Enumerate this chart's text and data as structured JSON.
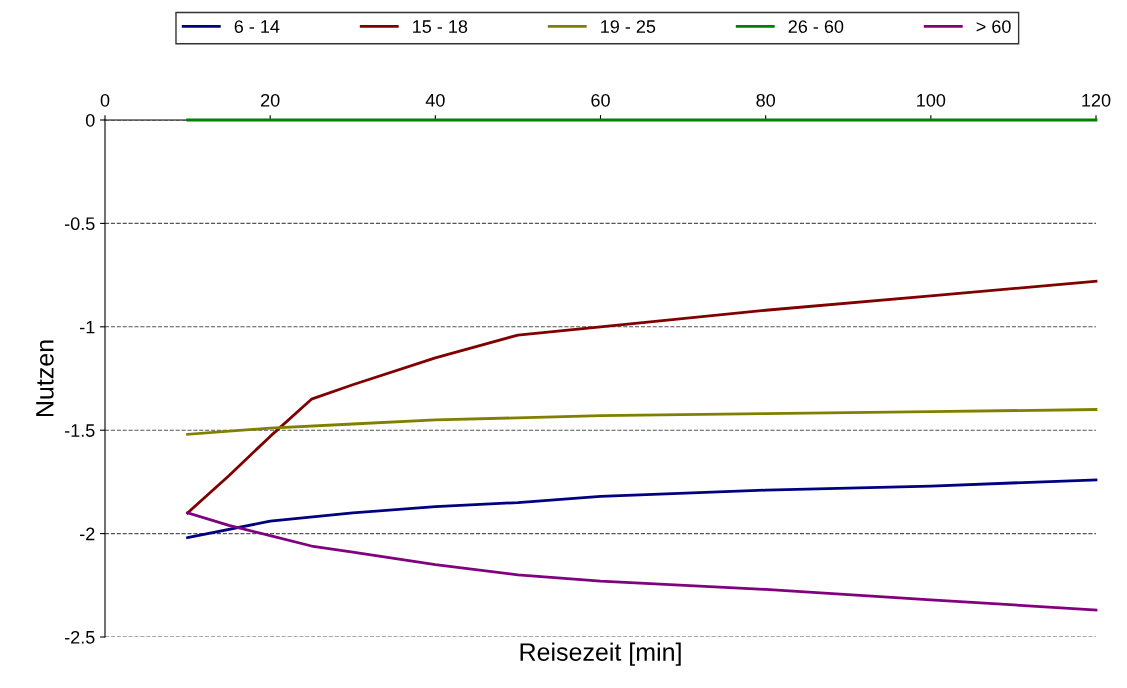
{
  "chart_data": {
    "type": "line",
    "xlabel": "Reisezeit [min]",
    "ylabel": "Nutzen",
    "xlim": [
      0,
      120
    ],
    "xticks": [
      0,
      20,
      40,
      60,
      80,
      100,
      120
    ],
    "ylim": [
      -2.5,
      0
    ],
    "yticks": [
      -2.5,
      -2,
      -1.5,
      -1,
      -0.5,
      0
    ],
    "grid": "y",
    "legend": "top",
    "marker": "none",
    "line_style": "solid",
    "series": [
      {
        "name": "6 - 14",
        "color": "#000080",
        "x": [
          10,
          20,
          30,
          40,
          50,
          60,
          80,
          100,
          120
        ],
        "values": [
          -2.02,
          -1.94,
          -1.9,
          -1.87,
          -1.85,
          -1.82,
          -1.79,
          -1.77,
          -1.74
        ]
      },
      {
        "name": "15 - 18",
        "color": "#800000",
        "x": [
          10,
          15,
          20,
          25,
          30,
          40,
          50,
          60,
          80,
          100,
          120
        ],
        "values": [
          -1.9,
          -1.72,
          -1.53,
          -1.35,
          -1.28,
          -1.15,
          -1.04,
          -1.0,
          -0.92,
          -0.85,
          -0.78
        ]
      },
      {
        "name": "19 - 25",
        "color": "#808000",
        "x": [
          10,
          20,
          30,
          40,
          60,
          80,
          100,
          120
        ],
        "values": [
          -1.52,
          -1.49,
          -1.47,
          -1.45,
          -1.43,
          -1.42,
          -1.41,
          -1.4
        ]
      },
      {
        "name": "26 - 60",
        "color": "#008000",
        "x": [
          10,
          120
        ],
        "values": [
          0,
          0
        ]
      },
      {
        "name": "> 60",
        "color": "#800080",
        "x": [
          10,
          15,
          20,
          25,
          30,
          40,
          50,
          60,
          80,
          100,
          120
        ],
        "values": [
          -1.9,
          -1.96,
          -2.01,
          -2.06,
          -2.09,
          -2.15,
          -2.2,
          -2.23,
          -2.27,
          -2.32,
          -2.37
        ]
      }
    ]
  }
}
